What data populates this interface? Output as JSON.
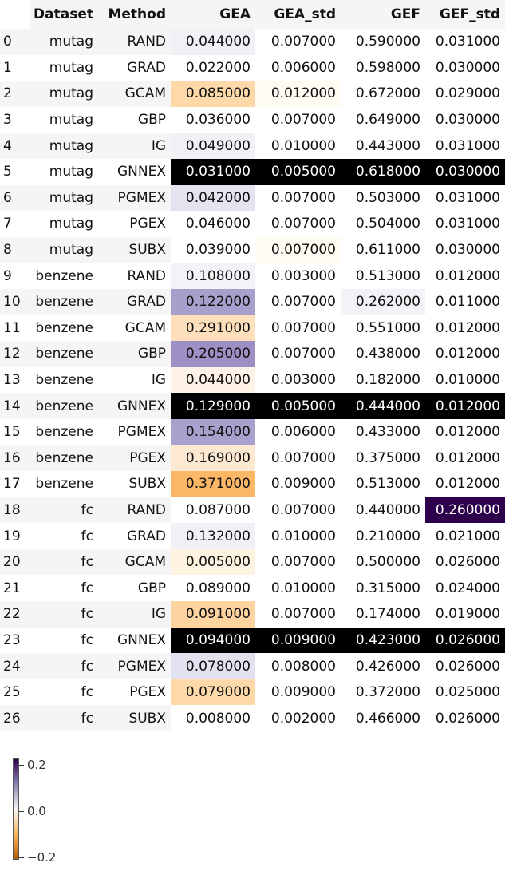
{
  "chart_data": {
    "type": "table",
    "columns": [
      "",
      "Dataset",
      "Method",
      "GEA",
      "GEA_std",
      "GEF",
      "GEF_std"
    ],
    "rows": [
      [
        "0",
        "mutag",
        "RAND",
        "0.044000",
        "0.007000",
        "0.590000",
        "0.031000"
      ],
      [
        "1",
        "mutag",
        "GRAD",
        "0.022000",
        "0.006000",
        "0.598000",
        "0.030000"
      ],
      [
        "2",
        "mutag",
        "GCAM",
        "0.085000",
        "0.012000",
        "0.672000",
        "0.029000"
      ],
      [
        "3",
        "mutag",
        "GBP",
        "0.036000",
        "0.007000",
        "0.649000",
        "0.030000"
      ],
      [
        "4",
        "mutag",
        "IG",
        "0.049000",
        "0.010000",
        "0.443000",
        "0.031000"
      ],
      [
        "5",
        "mutag",
        "GNNEX",
        "0.031000",
        "0.005000",
        "0.618000",
        "0.030000"
      ],
      [
        "6",
        "mutag",
        "PGMEX",
        "0.042000",
        "0.007000",
        "0.503000",
        "0.031000"
      ],
      [
        "7",
        "mutag",
        "PGEX",
        "0.046000",
        "0.007000",
        "0.504000",
        "0.031000"
      ],
      [
        "8",
        "mutag",
        "SUBX",
        "0.039000",
        "0.007000",
        "0.611000",
        "0.030000"
      ],
      [
        "9",
        "benzene",
        "RAND",
        "0.108000",
        "0.003000",
        "0.513000",
        "0.012000"
      ],
      [
        "10",
        "benzene",
        "GRAD",
        "0.122000",
        "0.007000",
        "0.262000",
        "0.011000"
      ],
      [
        "11",
        "benzene",
        "GCAM",
        "0.291000",
        "0.007000",
        "0.551000",
        "0.012000"
      ],
      [
        "12",
        "benzene",
        "GBP",
        "0.205000",
        "0.007000",
        "0.438000",
        "0.012000"
      ],
      [
        "13",
        "benzene",
        "IG",
        "0.044000",
        "0.003000",
        "0.182000",
        "0.010000"
      ],
      [
        "14",
        "benzene",
        "GNNEX",
        "0.129000",
        "0.005000",
        "0.444000",
        "0.012000"
      ],
      [
        "15",
        "benzene",
        "PGMEX",
        "0.154000",
        "0.006000",
        "0.433000",
        "0.012000"
      ],
      [
        "16",
        "benzene",
        "PGEX",
        "0.169000",
        "0.007000",
        "0.375000",
        "0.012000"
      ],
      [
        "17",
        "benzene",
        "SUBX",
        "0.371000",
        "0.009000",
        "0.513000",
        "0.012000"
      ],
      [
        "18",
        "fc",
        "RAND",
        "0.087000",
        "0.007000",
        "0.440000",
        "0.260000"
      ],
      [
        "19",
        "fc",
        "GRAD",
        "0.132000",
        "0.010000",
        "0.210000",
        "0.021000"
      ],
      [
        "20",
        "fc",
        "GCAM",
        "0.005000",
        "0.007000",
        "0.500000",
        "0.026000"
      ],
      [
        "21",
        "fc",
        "GBP",
        "0.089000",
        "0.010000",
        "0.315000",
        "0.024000"
      ],
      [
        "22",
        "fc",
        "IG",
        "0.091000",
        "0.007000",
        "0.174000",
        "0.019000"
      ],
      [
        "23",
        "fc",
        "GNNEX",
        "0.094000",
        "0.009000",
        "0.423000",
        "0.026000"
      ],
      [
        "24",
        "fc",
        "PGMEX",
        "0.078000",
        "0.008000",
        "0.426000",
        "0.026000"
      ],
      [
        "25",
        "fc",
        "PGEX",
        "0.079000",
        "0.009000",
        "0.372000",
        "0.025000"
      ],
      [
        "26",
        "fc",
        "SUBX",
        "0.008000",
        "0.002000",
        "0.466000",
        "0.026000"
      ]
    ],
    "cell_colors": {
      "0": [
        "#f0f0f5",
        "#ffffff",
        "#ffffff",
        "#ffffff"
      ],
      "1": [
        "#ffffff",
        "#ffffff",
        "#ffffff",
        "#ffffff"
      ],
      "2": [
        "#fdd8a8",
        "#fffbf3",
        "#ffffff",
        "#ffffff"
      ],
      "3": [
        "#ffffff",
        "#ffffff",
        "#ffffff",
        "#ffffff"
      ],
      "4": [
        "#f0f0f5",
        "#ffffff",
        "#ffffff",
        "#ffffff"
      ],
      "5": [
        "#000000",
        "#000000",
        "#000000",
        "#000000"
      ],
      "6": [
        "#e4e3f0",
        "#ffffff",
        "#ffffff",
        "#ffffff"
      ],
      "7": [
        "#ffffff",
        "#ffffff",
        "#ffffff",
        "#ffffff"
      ],
      "8": [
        "#ffffff",
        "#fffbf3",
        "#ffffff",
        "#ffffff"
      ],
      "9": [
        "#f2f2f7",
        "#ffffff",
        "#ffffff",
        "#ffffff"
      ],
      "10": [
        "#a99fcc",
        "#ffffff",
        "#f2f2f7",
        "#ffffff"
      ],
      "11": [
        "#fde0bb",
        "#ffffff",
        "#ffffff",
        "#ffffff"
      ],
      "12": [
        "#9c90c5",
        "#ffffff",
        "#ffffff",
        "#ffffff"
      ],
      "13": [
        "#fef3e6",
        "#ffffff",
        "#ffffff",
        "#ffffff"
      ],
      "14": [
        "#000000",
        "#000000",
        "#000000",
        "#000000"
      ],
      "15": [
        "#aaa0cd",
        "#ffffff",
        "#ffffff",
        "#ffffff"
      ],
      "16": [
        "#fde9d1",
        "#ffffff",
        "#ffffff",
        "#ffffff"
      ],
      "17": [
        "#fbb666",
        "#ffffff",
        "#ffffff",
        "#ffffff"
      ],
      "18": [
        "#ffffff",
        "#ffffff",
        "#ffffff",
        "#2d004b"
      ],
      "19": [
        "#f0f0f7",
        "#ffffff",
        "#ffffff",
        "#ffffff"
      ],
      "20": [
        "#fef2e1",
        "#ffffff",
        "#ffffff",
        "#ffffff"
      ],
      "21": [
        "#ffffff",
        "#ffffff",
        "#ffffff",
        "#ffffff"
      ],
      "22": [
        "#fdd3a0",
        "#ffffff",
        "#ffffff",
        "#ffffff"
      ],
      "23": [
        "#000000",
        "#000000",
        "#000000",
        "#000000"
      ],
      "24": [
        "#e2e1f0",
        "#ffffff",
        "#ffffff",
        "#ffffff"
      ],
      "25": [
        "#fdd9aa",
        "#ffffff",
        "#ffffff",
        "#ffffff"
      ],
      "26": [
        "#ffffff",
        "#ffffff",
        "#ffffff",
        "#ffffff"
      ]
    },
    "colorbar": {
      "ticks": [
        "0.2",
        "0.0",
        "−0.2"
      ],
      "colormap": "PuOr",
      "range": [
        -0.2,
        0.2
      ]
    }
  }
}
